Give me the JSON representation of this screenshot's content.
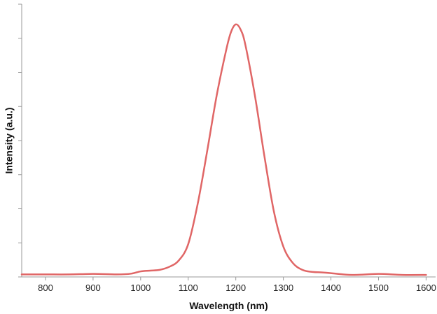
{
  "chart_data": {
    "type": "line",
    "title": "",
    "xlabel": "Wavelength (nm)",
    "ylabel": "Intensity (a.u.)",
    "xlim": [
      750,
      1620
    ],
    "ylim": [
      0,
      1.08
    ],
    "x_ticks": [
      800,
      900,
      1000,
      1100,
      1200,
      1300,
      1400,
      1500,
      1600
    ],
    "y_tick_count": 8,
    "y_tick_labels_shown": false,
    "grid": false,
    "legend": "none",
    "series": [
      {
        "color": "#e06666",
        "x": [
          750,
          800,
          850,
          900,
          950,
          980,
          1000,
          1020,
          1040,
          1060,
          1080,
          1100,
          1120,
          1140,
          1160,
          1180,
          1190,
          1200,
          1210,
          1220,
          1240,
          1260,
          1280,
          1300,
          1320,
          1340,
          1360,
          1380,
          1400,
          1420,
          1450,
          1500,
          1550,
          1600
        ],
        "y": [
          0.01,
          0.01,
          0.01,
          0.012,
          0.01,
          0.013,
          0.022,
          0.025,
          0.028,
          0.04,
          0.065,
          0.13,
          0.29,
          0.5,
          0.72,
          0.9,
          0.97,
          1.0,
          0.98,
          0.92,
          0.72,
          0.48,
          0.26,
          0.12,
          0.055,
          0.028,
          0.02,
          0.018,
          0.015,
          0.011,
          0.008,
          0.012,
          0.008,
          0.008
        ]
      }
    ]
  }
}
